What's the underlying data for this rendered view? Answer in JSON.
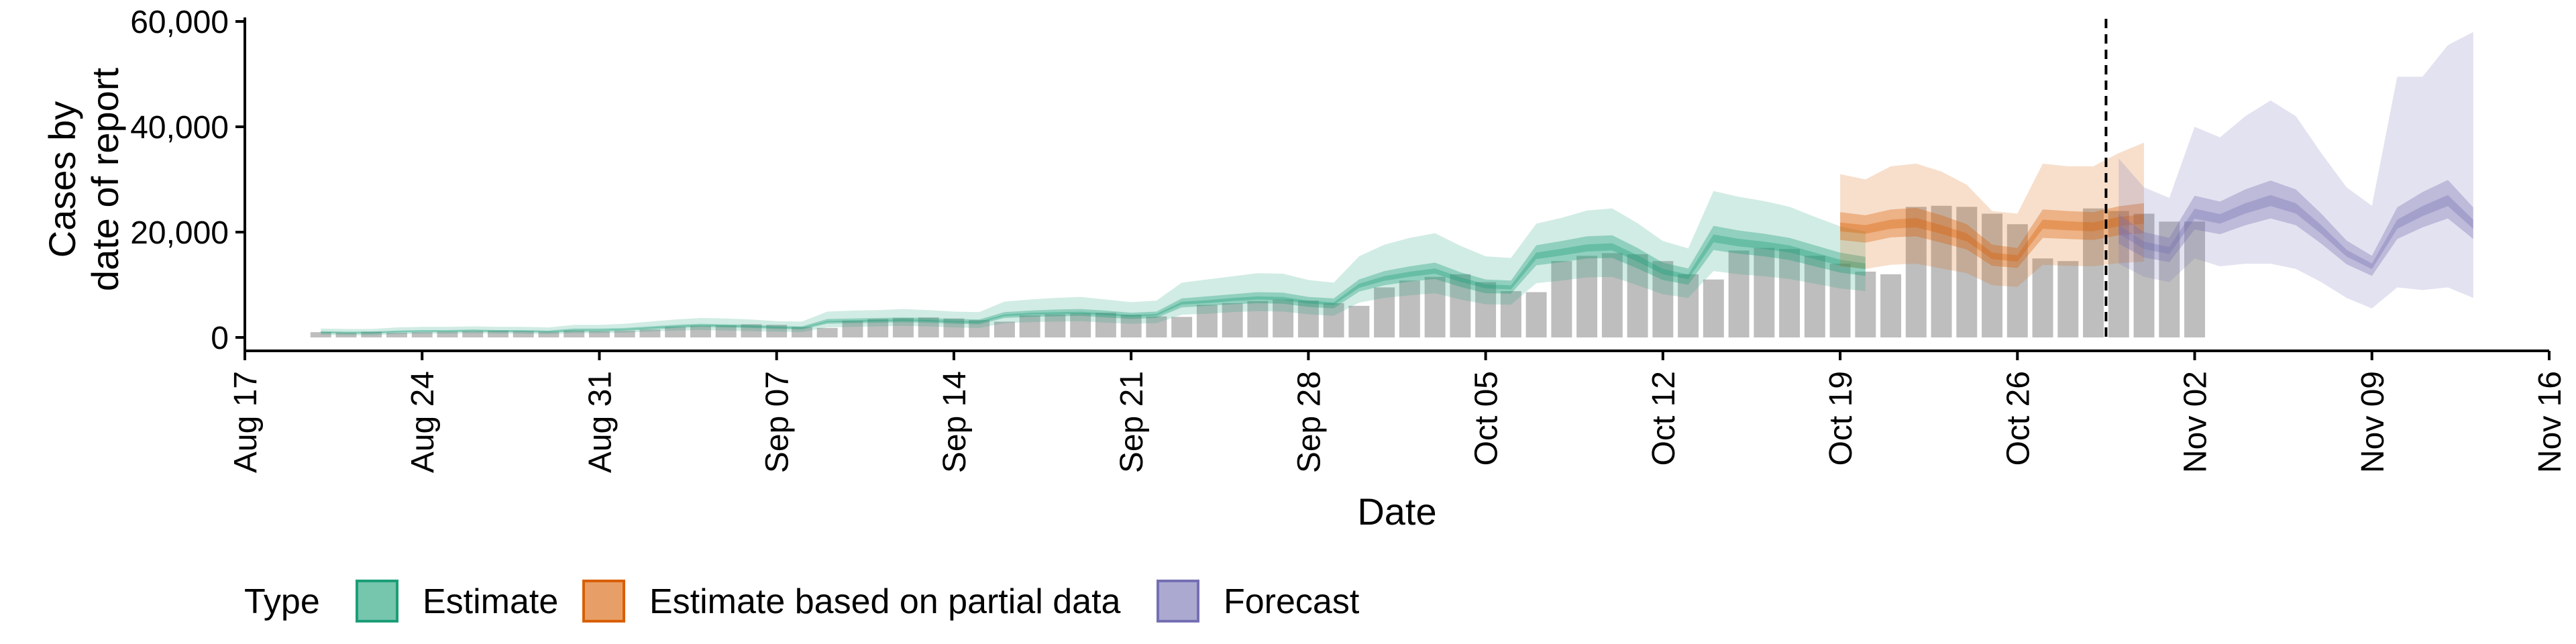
{
  "chart_data": {
    "type": "area",
    "ylabel_lines": [
      "Cases by",
      "date of report"
    ],
    "xlabel": "Date",
    "ylim": [
      0,
      60000
    ],
    "yticks": [
      0,
      20000,
      40000,
      60000
    ],
    "ytick_labels": [
      "0",
      "20,000",
      "40,000",
      "60,000"
    ],
    "x_start": "2020-08-17",
    "x_end": "2020-11-16",
    "xticks": [
      "2020-08-17",
      "2020-08-24",
      "2020-08-31",
      "2020-09-07",
      "2020-09-14",
      "2020-09-21",
      "2020-09-28",
      "2020-10-05",
      "2020-10-12",
      "2020-10-19",
      "2020-10-26",
      "2020-11-02",
      "2020-11-09",
      "2020-11-16"
    ],
    "xtick_labels": [
      "Aug 17",
      "Aug 24",
      "Aug 31",
      "Sep 07",
      "Sep 14",
      "Sep 21",
      "Sep 28",
      "Oct 05",
      "Oct 12",
      "Oct 19",
      "Oct 26",
      "Nov 02",
      "Nov 09",
      "Nov 16"
    ],
    "forecast_date": "2020-10-29",
    "reported_cases": {
      "start_date": "2020-08-20",
      "values": [
        1000,
        900,
        1100,
        900,
        1000,
        1100,
        1200,
        1300,
        1200,
        1100,
        1300,
        1200,
        1300,
        1500,
        2000,
        2200,
        2300,
        2500,
        2400,
        2000,
        1800,
        3200,
        3500,
        3700,
        3800,
        3600,
        3300,
        3000,
        4200,
        4400,
        4600,
        4700,
        4300,
        4000,
        3900,
        6200,
        6500,
        6900,
        7200,
        7000,
        6500,
        6000,
        9500,
        10800,
        11500,
        12000,
        10500,
        8800,
        8600,
        14500,
        15500,
        16000,
        15800,
        14500,
        12000,
        11000,
        16500,
        17000,
        16800,
        15500,
        14000,
        12500,
        12000,
        24800,
        25000,
        24800,
        23500,
        21500,
        15000,
        14500,
        24500,
        24000,
        23500,
        22000,
        22000
      ]
    },
    "estimate": {
      "start_date": "2020-08-20",
      "median": [
        1000,
        900,
        900,
        1100,
        1200,
        1200,
        1300,
        1200,
        1200,
        1100,
        1400,
        1400,
        1500,
        1800,
        2100,
        2300,
        2200,
        2100,
        1900,
        1800,
        3000,
        3100,
        3200,
        3300,
        3200,
        3000,
        2900,
        4200,
        4500,
        4600,
        4700,
        4400,
        4100,
        4300,
        6500,
        6800,
        7200,
        7500,
        7400,
        6700,
        6400,
        9800,
        11200,
        12000,
        12600,
        11000,
        9700,
        9500,
        15500,
        16200,
        17000,
        17200,
        15000,
        12500,
        11500,
        18800,
        18000,
        17500,
        16800,
        15500,
        14200,
        13500
      ],
      "inner_lo": [
        800,
        700,
        700,
        900,
        1000,
        1000,
        1100,
        1000,
        1000,
        900,
        1100,
        1100,
        1300,
        1500,
        1800,
        2000,
        1900,
        1800,
        1600,
        1500,
        2600,
        2700,
        2800,
        2900,
        2800,
        2600,
        2500,
        3700,
        3900,
        4000,
        4100,
        3800,
        3500,
        3700,
        5700,
        6000,
        6300,
        6500,
        6400,
        5800,
        5500,
        8700,
        9900,
        10600,
        11100,
        9600,
        8400,
        8300,
        13700,
        14300,
        15000,
        15100,
        13100,
        10900,
        10000,
        16600,
        15900,
        15400,
        14700,
        13500,
        12300,
        11700
      ],
      "inner_hi": [
        1200,
        1100,
        1100,
        1300,
        1400,
        1400,
        1500,
        1400,
        1400,
        1300,
        1700,
        1700,
        1800,
        2100,
        2400,
        2600,
        2500,
        2400,
        2200,
        2100,
        3500,
        3600,
        3700,
        3800,
        3700,
        3500,
        3400,
        4800,
        5100,
        5300,
        5400,
        5100,
        4700,
        4900,
        7400,
        7800,
        8200,
        8600,
        8500,
        7700,
        7400,
        11000,
        12600,
        13500,
        14200,
        12400,
        11000,
        10800,
        17500,
        18300,
        19200,
        19400,
        17000,
        14200,
        13100,
        21200,
        20300,
        19700,
        18900,
        17500,
        16100,
        15300
      ],
      "outer_lo": [
        500,
        400,
        400,
        600,
        700,
        700,
        800,
        700,
        700,
        600,
        800,
        800,
        900,
        1100,
        1300,
        1400,
        1300,
        1200,
        1100,
        1000,
        1900,
        2000,
        2100,
        2200,
        2100,
        1900,
        1800,
        2700,
        2900,
        3000,
        3100,
        2800,
        2600,
        2700,
        4300,
        4500,
        4800,
        5000,
        4900,
        4400,
        4100,
        6600,
        7500,
        8000,
        8400,
        7200,
        6300,
        6200,
        10300,
        10800,
        11400,
        11500,
        9900,
        8200,
        7500,
        12600,
        12000,
        11600,
        11100,
        10200,
        9300,
        8800
      ],
      "outer_hi": [
        1700,
        1600,
        1600,
        1900,
        2000,
        2000,
        2100,
        2000,
        2000,
        1900,
        2400,
        2400,
        2600,
        3000,
        3400,
        3700,
        3600,
        3400,
        3100,
        3000,
        4900,
        5100,
        5200,
        5400,
        5200,
        4900,
        4800,
        6800,
        7200,
        7500,
        7700,
        7200,
        6700,
        7000,
        10400,
        11000,
        11600,
        12200,
        12100,
        10900,
        10400,
        15400,
        17600,
        18900,
        19800,
        17400,
        15400,
        15100,
        21600,
        22700,
        24100,
        24500,
        21700,
        18300,
        16900,
        27800,
        26700,
        25900,
        24800,
        22900,
        21100,
        20100
      ]
    },
    "partial": {
      "start_date": "2020-10-19",
      "median": [
        21000,
        20500,
        21500,
        21800,
        20500,
        19000,
        15500,
        15000,
        21500,
        21200,
        21000,
        22000,
        22500
      ],
      "inner_lo": [
        18500,
        18000,
        19000,
        19200,
        18000,
        16700,
        13600,
        13200,
        18900,
        18700,
        18500,
        19400,
        19800
      ],
      "inner_hi": [
        23800,
        23200,
        24300,
        24600,
        23200,
        21500,
        17600,
        17000,
        24300,
        24000,
        23800,
        24900,
        25500
      ],
      "outer_lo": [
        13500,
        13000,
        13800,
        14000,
        13100,
        12200,
        9900,
        9600,
        13800,
        13600,
        13500,
        14100,
        14400
      ],
      "outer_hi": [
        31000,
        30000,
        32500,
        33000,
        31500,
        29000,
        24000,
        23500,
        33000,
        32500,
        32500,
        35000,
        37000
      ]
    },
    "forecast": {
      "start_date": "2020-10-30",
      "median": [
        20500,
        17500,
        16500,
        23500,
        22500,
        24500,
        26000,
        24500,
        20500,
        16000,
        13500,
        21500,
        24000,
        26000,
        21500
      ],
      "inner_lo": [
        17800,
        15200,
        14300,
        20500,
        19600,
        21300,
        22600,
        21300,
        17800,
        13900,
        11700,
        18700,
        20900,
        22600,
        18700
      ],
      "inner_hi": [
        23400,
        20000,
        18900,
        26900,
        25800,
        28100,
        29800,
        28100,
        23500,
        18400,
        15500,
        24700,
        27600,
        29900,
        24700
      ],
      "outer_lo": [
        14000,
        11500,
        10500,
        15000,
        13500,
        14000,
        14000,
        13000,
        10500,
        7500,
        5500,
        9500,
        9000,
        9500,
        7500
      ],
      "outer_hi": [
        34000,
        28500,
        26500,
        40000,
        38000,
        42000,
        45000,
        42000,
        35000,
        28500,
        25000,
        49500,
        49500,
        55500,
        58000
      ]
    },
    "legend": {
      "title": "Type",
      "items": [
        {
          "label": "Estimate",
          "fill": "#1B9E77"
        },
        {
          "label": "Estimate based on partial data",
          "fill": "#D95F02"
        },
        {
          "label": "Forecast",
          "fill": "#7570B3"
        }
      ],
      "position": "bottom-left"
    },
    "colors": {
      "bars": "#BEBEBE",
      "estimate": "#1B9E77",
      "partial": "#D95F02",
      "forecast": "#7570B3",
      "forecast_line": "#000000"
    },
    "grid": false
  }
}
